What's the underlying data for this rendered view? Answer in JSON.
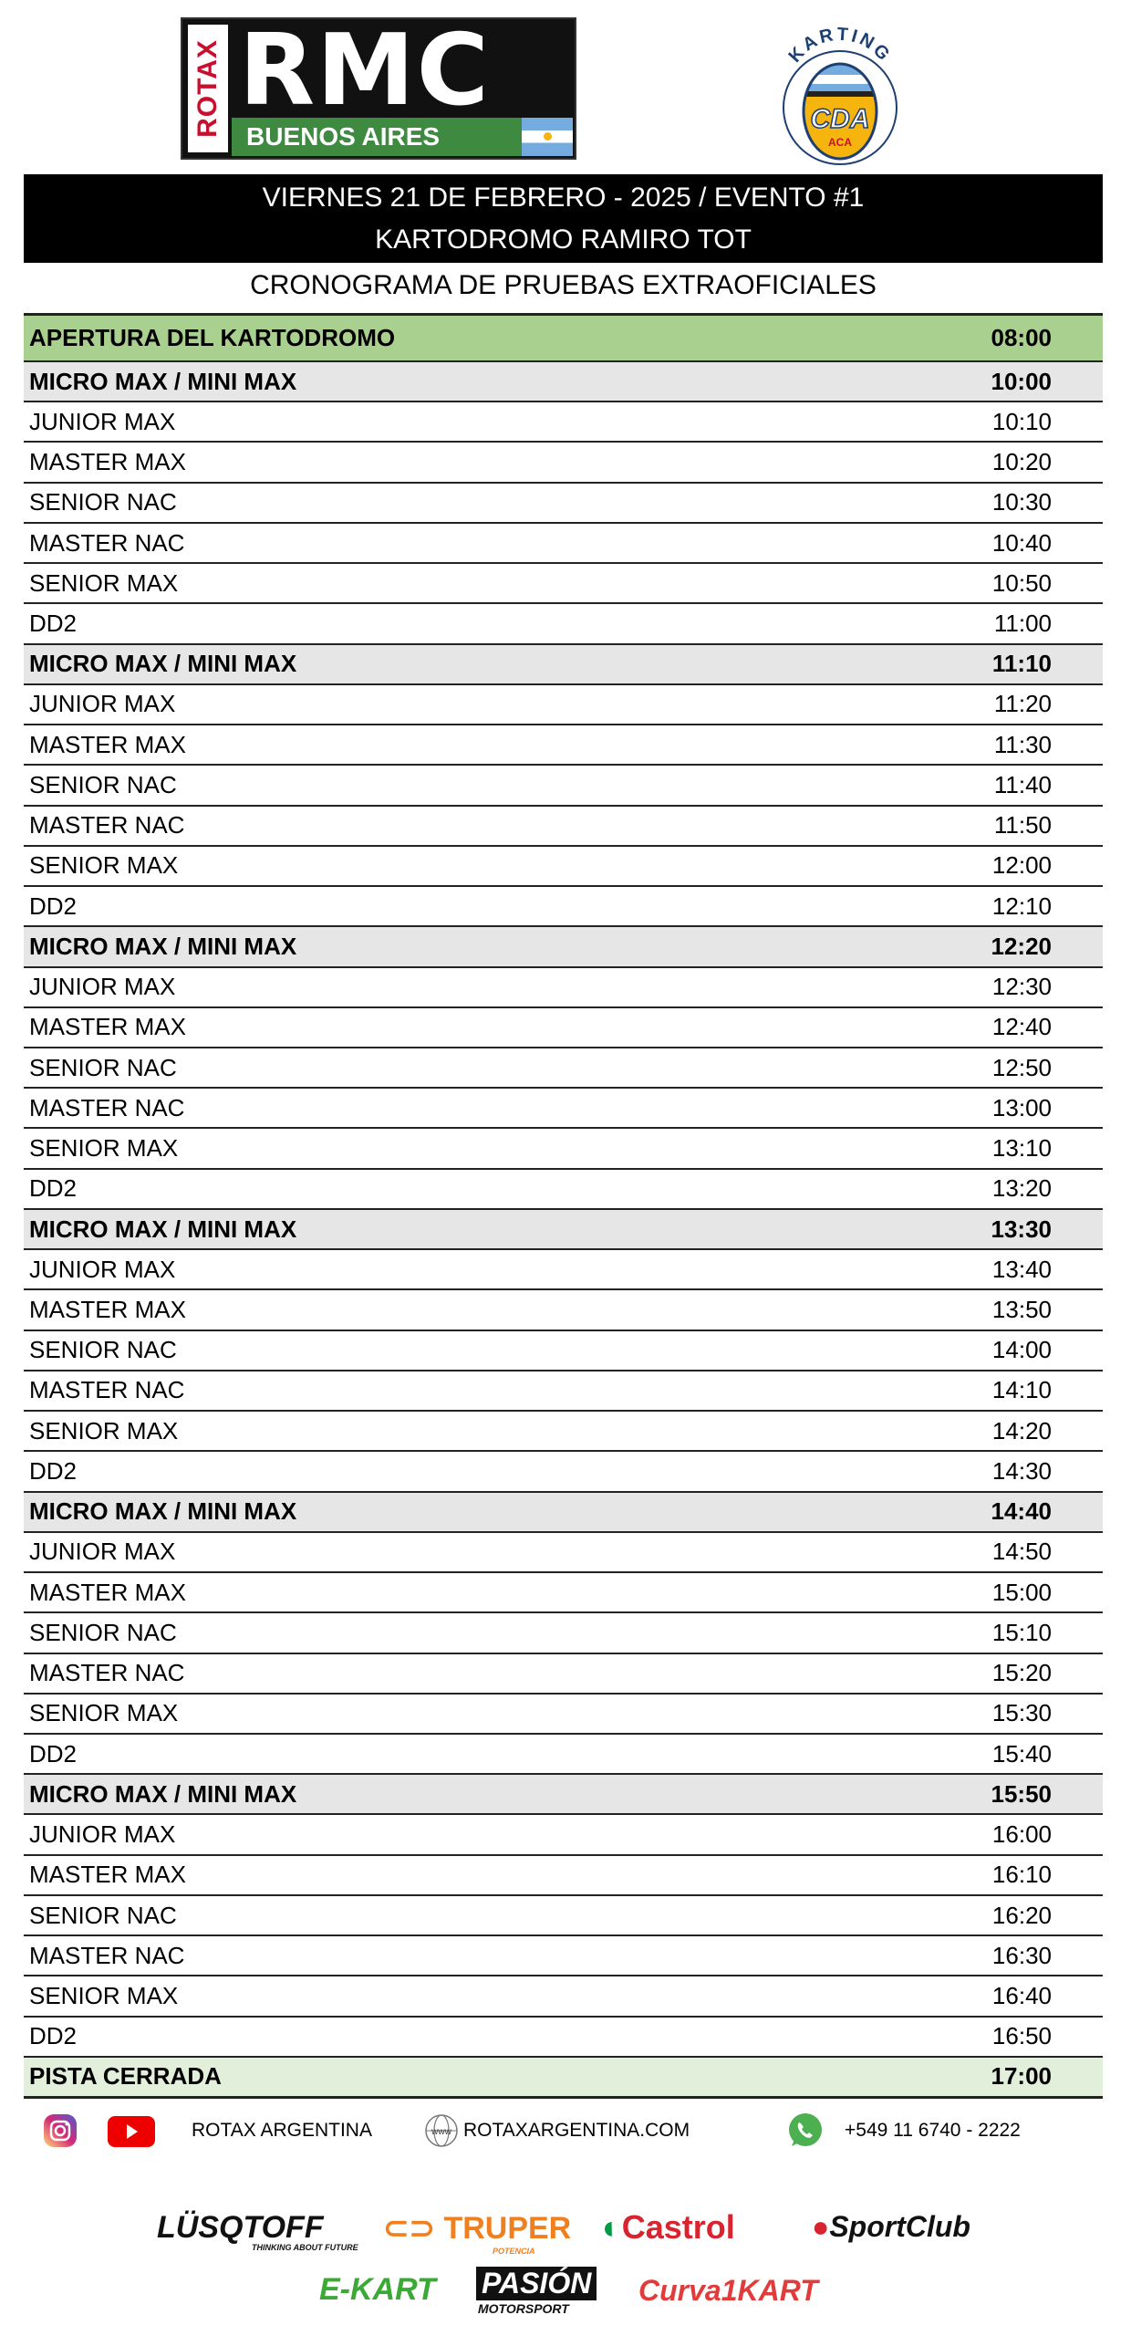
{
  "logos": {
    "rmc_top": "RMC",
    "rmc_side": "ROTAX",
    "rmc_bottom": "BUENOS AIRES",
    "cda_arc": "KARTING",
    "cda_center": "CDA",
    "cda_small": "ACA"
  },
  "banner": {
    "line1": "VIERNES 21 DE FEBRERO - 2025 / EVENTO #1",
    "line2": "KARTODROMO RAMIRO TOT"
  },
  "subtitle": "CRONOGRAMA DE PRUEBAS EXTRAOFICIALES",
  "colors": {
    "opening": "#a9d08e",
    "group_header": "#e7e6e6",
    "closing": "#e2efda"
  },
  "opening": {
    "label": "APERTURA DEL KARTODROMO",
    "time": "08:00"
  },
  "blocks": [
    {
      "rows": [
        [
          "MICRO MAX / MINI MAX",
          "10:00"
        ],
        [
          "JUNIOR MAX",
          "10:10"
        ],
        [
          "MASTER MAX",
          "10:20"
        ],
        [
          "SENIOR NAC",
          "10:30"
        ],
        [
          "MASTER NAC",
          "10:40"
        ],
        [
          "SENIOR MAX",
          "10:50"
        ],
        [
          "DD2",
          "11:00"
        ]
      ]
    },
    {
      "rows": [
        [
          "MICRO MAX / MINI MAX",
          "11:10"
        ],
        [
          "JUNIOR MAX",
          "11:20"
        ],
        [
          "MASTER MAX",
          "11:30"
        ],
        [
          "SENIOR NAC",
          "11:40"
        ],
        [
          "MASTER NAC",
          "11:50"
        ],
        [
          "SENIOR MAX",
          "12:00"
        ],
        [
          "DD2",
          "12:10"
        ]
      ]
    },
    {
      "rows": [
        [
          "MICRO MAX / MINI MAX",
          "12:20"
        ],
        [
          "JUNIOR MAX",
          "12:30"
        ],
        [
          "MASTER MAX",
          "12:40"
        ],
        [
          "SENIOR NAC",
          "12:50"
        ],
        [
          "MASTER NAC",
          "13:00"
        ],
        [
          "SENIOR MAX",
          "13:10"
        ],
        [
          "DD2",
          "13:20"
        ]
      ]
    },
    {
      "rows": [
        [
          "MICRO MAX / MINI MAX",
          "13:30"
        ],
        [
          "JUNIOR MAX",
          "13:40"
        ],
        [
          "MASTER MAX",
          "13:50"
        ],
        [
          "SENIOR NAC",
          "14:00"
        ],
        [
          "MASTER NAC",
          "14:10"
        ],
        [
          "SENIOR MAX",
          "14:20"
        ],
        [
          "DD2",
          "14:30"
        ]
      ]
    },
    {
      "rows": [
        [
          "MICRO MAX / MINI MAX",
          "14:40"
        ],
        [
          "JUNIOR MAX",
          "14:50"
        ],
        [
          "MASTER MAX",
          "15:00"
        ],
        [
          "SENIOR NAC",
          "15:10"
        ],
        [
          "MASTER NAC",
          "15:20"
        ],
        [
          "SENIOR MAX",
          "15:30"
        ],
        [
          "DD2",
          "15:40"
        ]
      ]
    },
    {
      "rows": [
        [
          "MICRO MAX / MINI MAX",
          "15:50"
        ],
        [
          "JUNIOR MAX",
          "16:00"
        ],
        [
          "MASTER MAX",
          "16:10"
        ],
        [
          "SENIOR NAC",
          "16:20"
        ],
        [
          "MASTER NAC",
          "16:30"
        ],
        [
          "SENIOR MAX",
          "16:40"
        ],
        [
          "DD2",
          "16:50"
        ]
      ]
    }
  ],
  "closing": {
    "label": "PISTA CERRADA",
    "time": "17:00"
  },
  "contact": {
    "social": "ROTAX ARGENTINA",
    "web_icon": "www",
    "website": "ROTAXARGENTINA.COM",
    "phone": "+549 11 6740 - 2222"
  },
  "sponsors": {
    "lusqtoff": "LÜSQTOFF",
    "lusqtoff_tag": "THINKING ABOUT FUTURE",
    "truper": "TRUPER",
    "truper_tag": "POTENCIA",
    "castrol": "Castrol",
    "sportclub": "SportClub",
    "ekart": "E-KART",
    "pasion": "PASIÓN",
    "pasion_sub": "MOTORSPORT",
    "curva": "Curva1KART"
  }
}
